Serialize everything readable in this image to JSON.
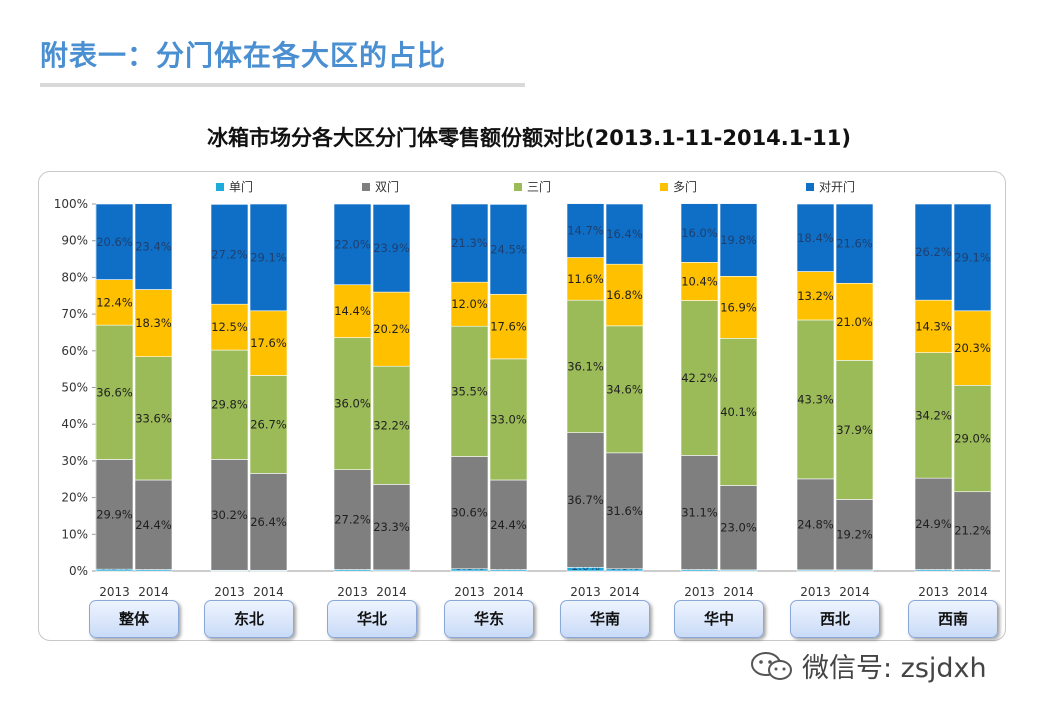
{
  "page": {
    "title": "附表一：分门体在各大区的占比",
    "watermark": "微信号: zsjdxh"
  },
  "chart_data": {
    "type": "bar",
    "stacked": true,
    "title": "冰箱市场分各大区分门体零售额份额对比(2013.1-11-2014.1-11)",
    "ylim": [
      0,
      100
    ],
    "y_ticks": [
      "0%",
      "10%",
      "20%",
      "30%",
      "40%",
      "50%",
      "60%",
      "70%",
      "80%",
      "90%",
      "100%"
    ],
    "legend_position": "top",
    "series": [
      {
        "name": "单门",
        "color": "#1faadc"
      },
      {
        "name": "双门",
        "color": "#7f7f7f"
      },
      {
        "name": "三门",
        "color": "#9bbb59"
      },
      {
        "name": "多门",
        "color": "#ffc000"
      },
      {
        "name": "对开门",
        "color": "#0f6fc6"
      }
    ],
    "groups": [
      {
        "region": "整体",
        "bars": [
          {
            "year": "2013",
            "values": [
              0.5,
              29.9,
              36.6,
              12.4,
              20.6
            ],
            "labels": [
              "0.5%",
              "29.9%",
              "36.6%",
              "12.4%",
              "20.6%"
            ]
          },
          {
            "year": "2014",
            "values": [
              0.4,
              24.4,
              33.6,
              18.3,
              23.4
            ],
            "labels": [
              "0.4%",
              "24.4%",
              "33.6%",
              "18.3%",
              "23.4%"
            ]
          }
        ]
      },
      {
        "region": "东北",
        "bars": [
          {
            "year": "2013",
            "values": [
              0.2,
              30.2,
              29.8,
              12.5,
              27.2
            ],
            "labels": [
              "0.2%",
              "30.2%",
              "29.8%",
              "12.5%",
              "27.2%"
            ]
          },
          {
            "year": "2014",
            "values": [
              0.2,
              26.4,
              26.7,
              17.6,
              29.1
            ],
            "labels": [
              "0.2%",
              "26.4%",
              "26.7%",
              "17.6%",
              "29.1%"
            ]
          }
        ]
      },
      {
        "region": "华北",
        "bars": [
          {
            "year": "2013",
            "values": [
              0.4,
              27.2,
              36.0,
              14.4,
              22.0
            ],
            "labels": [
              "0.4%",
              "27.2%",
              "36.0%",
              "14.4%",
              "22.0%"
            ]
          },
          {
            "year": "2014",
            "values": [
              0.3,
              23.3,
              32.2,
              20.2,
              23.9
            ],
            "labels": [
              "0.3%",
              "23.3%",
              "32.2%",
              "20.2%",
              "23.9%"
            ]
          }
        ]
      },
      {
        "region": "华东",
        "bars": [
          {
            "year": "2013",
            "values": [
              0.6,
              30.6,
              35.5,
              12.0,
              21.3
            ],
            "labels": [
              "0.6%",
              "30.6%",
              "35.5%",
              "12.0%",
              "21.3%"
            ]
          },
          {
            "year": "2014",
            "values": [
              0.4,
              24.4,
              33.0,
              17.6,
              24.5
            ],
            "labels": [
              "0.4%",
              "24.4%",
              "33.0%",
              "17.6%",
              "24.5%"
            ]
          }
        ]
      },
      {
        "region": "华南",
        "bars": [
          {
            "year": "2013",
            "values": [
              1.0,
              36.7,
              36.1,
              11.6,
              14.7
            ],
            "labels": [
              "1.0%",
              "36.7%",
              "36.1%",
              "11.6%",
              "14.7%"
            ]
          },
          {
            "year": "2014",
            "values": [
              0.6,
              31.6,
              34.6,
              16.8,
              16.4
            ],
            "labels": [
              "0.6%",
              "31.6%",
              "34.6%",
              "16.8%",
              "16.4%"
            ]
          }
        ]
      },
      {
        "region": "华中",
        "bars": [
          {
            "year": "2013",
            "values": [
              0.4,
              31.1,
              42.2,
              10.4,
              16.0
            ],
            "labels": [
              "0.4%",
              "31.1%",
              "42.2%",
              "10.4%",
              "16.0%"
            ]
          },
          {
            "year": "2014",
            "values": [
              0.3,
              23.0,
              40.1,
              16.9,
              19.8
            ],
            "labels": [
              "0.3%",
              "23.0%",
              "40.1%",
              "16.9%",
              "19.8%"
            ]
          }
        ]
      },
      {
        "region": "西北",
        "bars": [
          {
            "year": "2013",
            "values": [
              0.3,
              24.8,
              43.3,
              13.2,
              18.4
            ],
            "labels": [
              "0.3%",
              "24.8%",
              "43.3%",
              "13.2%",
              "18.4%"
            ]
          },
          {
            "year": "2014",
            "values": [
              0.3,
              19.2,
              37.9,
              21.0,
              21.6
            ],
            "labels": [
              "0.3%",
              "19.2%",
              "37.9%",
              "21.0%",
              "21.6%"
            ]
          }
        ]
      },
      {
        "region": "西南",
        "bars": [
          {
            "year": "2013",
            "values": [
              0.4,
              24.9,
              34.2,
              14.3,
              26.2
            ],
            "labels": [
              "0.4%",
              "24.9%",
              "34.2%",
              "14.3%",
              "26.2%"
            ]
          },
          {
            "year": "2014",
            "values": [
              0.4,
              21.2,
              29.0,
              20.3,
              29.1
            ],
            "labels": [
              "0.4%",
              "21.2%",
              "29.0%",
              "20.3%",
              "29.1%"
            ]
          }
        ]
      }
    ]
  }
}
